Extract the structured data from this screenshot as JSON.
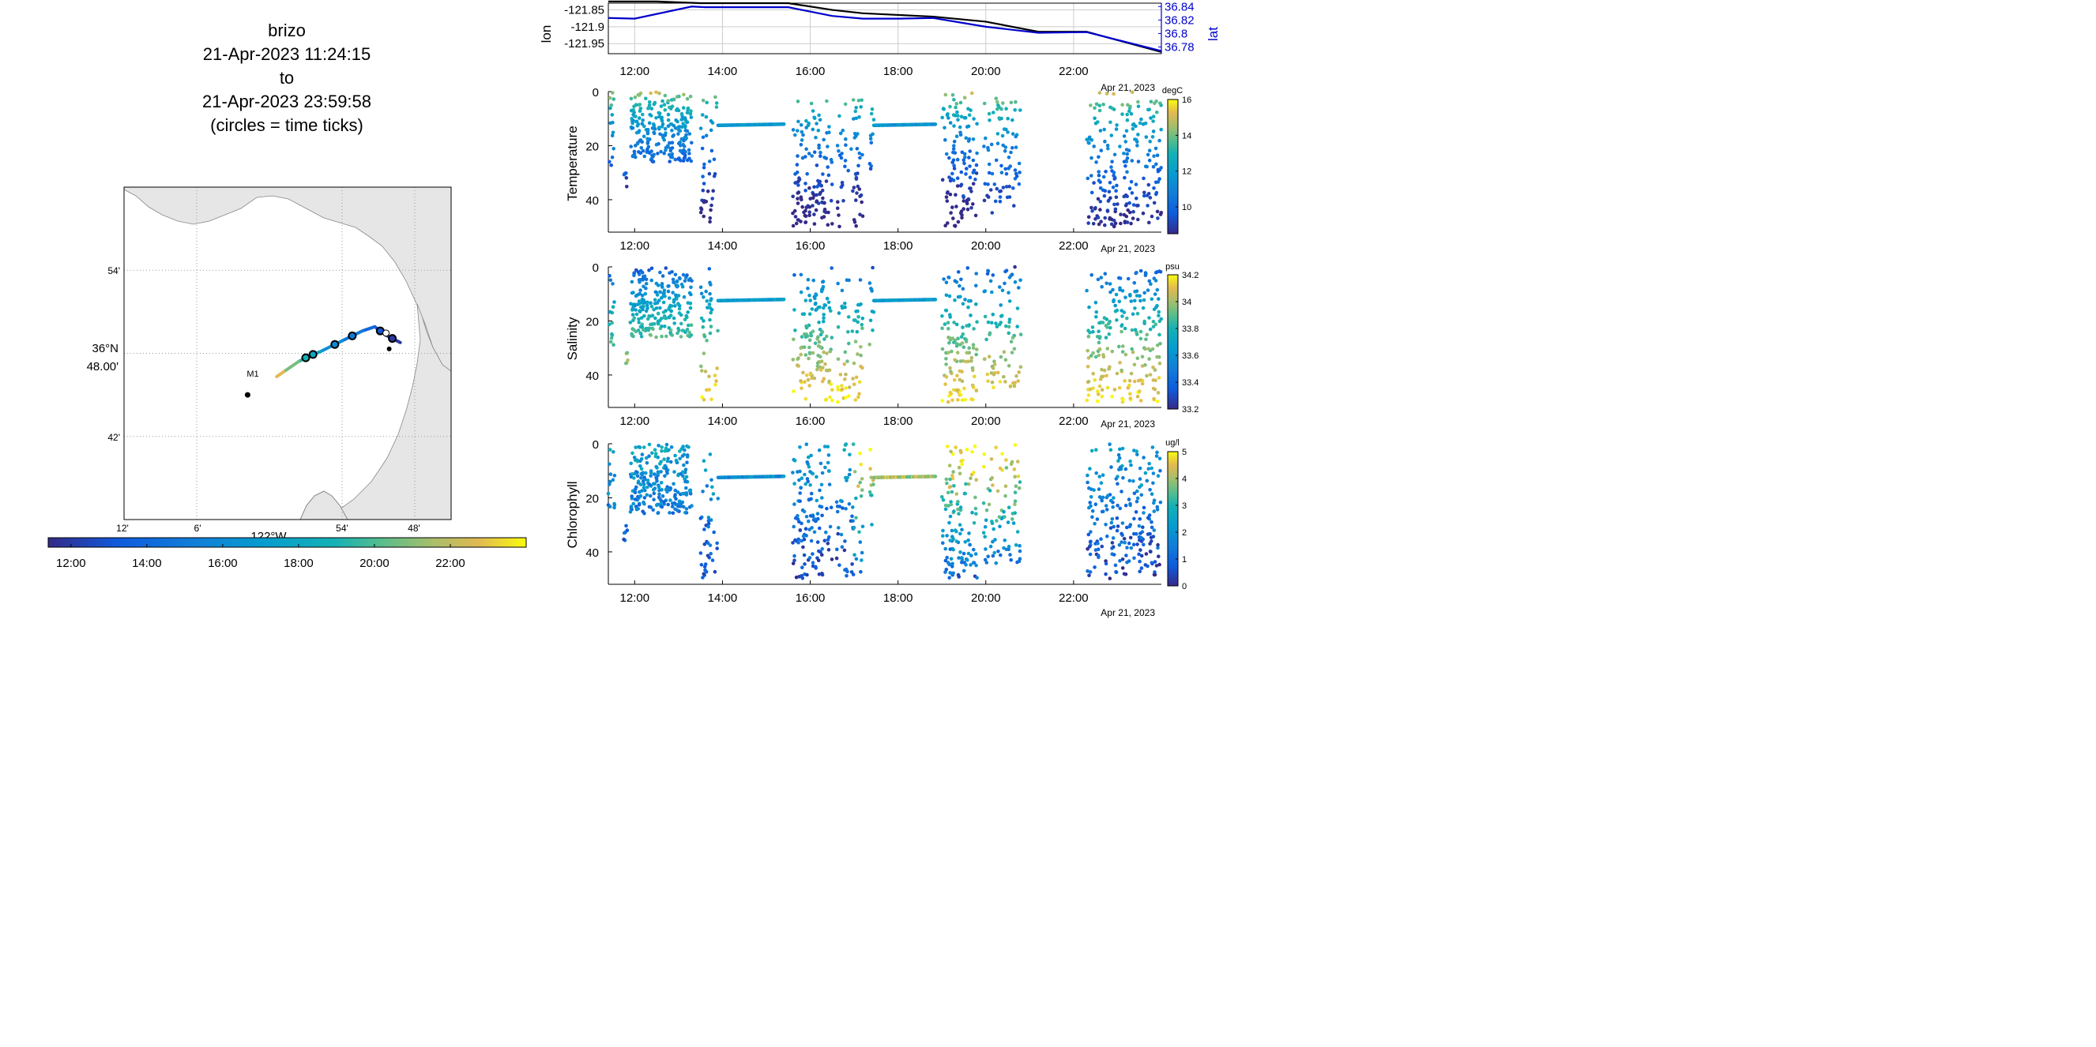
{
  "title": {
    "line1": "brizo",
    "line2": "21-Apr-2023 11:24:15",
    "line3": "to",
    "line4": "21-Apr-2023 23:59:58",
    "line5": "(circles = time ticks)"
  },
  "chart_data": [
    {
      "type": "map",
      "xlabel": "122°W",
      "lon_ticks": [
        "12'",
        "6'",
        "54'",
        "48'"
      ],
      "lon_tick_values": [
        -122.2,
        -122.1,
        -121.9,
        -121.8
      ],
      "lat_ticks": [
        "54'",
        "36°N 48.00'",
        "42'"
      ],
      "lat_tick_values": [
        36.9,
        36.8,
        36.7
      ],
      "xlim": [
        -122.2,
        -121.75
      ],
      "ylim": [
        36.6,
        37.0
      ],
      "station_label": "M1",
      "station": {
        "lon": -122.03,
        "lat": 36.75
      },
      "track": [
        {
          "time": 11.4,
          "lon": -121.82,
          "lat": 36.813
        },
        {
          "time": 12.5,
          "lon": -121.84,
          "lat": 36.822
        },
        {
          "time": 13.5,
          "lon": -121.855,
          "lat": 36.832
        },
        {
          "time": 14.5,
          "lon": -121.872,
          "lat": 36.827
        },
        {
          "time": 15.5,
          "lon": -121.9,
          "lat": 36.815
        },
        {
          "time": 17.0,
          "lon": -121.93,
          "lat": 36.802
        },
        {
          "time": 18.5,
          "lon": -121.945,
          "lat": 36.797
        },
        {
          "time": 20.0,
          "lon": -121.96,
          "lat": 36.79
        },
        {
          "time": 21.5,
          "lon": -121.98,
          "lat": 36.778
        },
        {
          "time": 24.0,
          "lon": -121.99,
          "lat": 36.772
        }
      ],
      "time_tick_circles": [
        12,
        13,
        15,
        16,
        18,
        19
      ],
      "colorbar_ticks": [
        "12:00",
        "14:00",
        "16:00",
        "18:00",
        "20:00",
        "22:00"
      ],
      "colorbar_range": [
        11.4,
        24.0
      ]
    },
    {
      "type": "line",
      "ylabel": "lon",
      "ylabel_right": "lat",
      "xlabel": "Apr 21, 2023",
      "x_ticks": [
        "12:00",
        "14:00",
        "16:00",
        "18:00",
        "20:00",
        "22:00"
      ],
      "y_ticks_left": [
        "-121.85",
        "-121.9",
        "-121.95"
      ],
      "y_ticks_right": [
        "36.84",
        "36.82",
        "36.8",
        "36.78"
      ],
      "ylim_left": [
        -121.98,
        -121.83
      ],
      "ylim_right": [
        36.77,
        36.845
      ],
      "series": [
        {
          "name": "lon",
          "x": [
            11.4,
            12.5,
            13.5,
            15.5,
            16.5,
            17.2,
            18.0,
            18.8,
            20.0,
            21.2,
            22.3,
            24.0
          ],
          "y": [
            -121.825,
            -121.825,
            -121.83,
            -121.83,
            -121.85,
            -121.86,
            -121.865,
            -121.87,
            -121.885,
            -121.915,
            -121.915,
            -121.975
          ]
        },
        {
          "name": "lat",
          "x": [
            11.4,
            12.0,
            13.3,
            13.6,
            15.5,
            16.5,
            17.2,
            18.0,
            18.8,
            20.0,
            21.2,
            22.3,
            24.0
          ],
          "y": [
            36.823,
            36.822,
            36.84,
            36.839,
            36.839,
            36.826,
            36.822,
            36.822,
            36.823,
            36.81,
            36.801,
            36.802,
            36.774
          ]
        }
      ],
      "series_colors": [
        "#000000",
        "#0000cc"
      ]
    },
    {
      "type": "scatter",
      "ylabel": "Temperature",
      "xlabel": "Apr 21, 2023",
      "x_ticks": [
        "12:00",
        "14:00",
        "16:00",
        "18:00",
        "20:00",
        "22:00"
      ],
      "y_ticks": [
        "0",
        "20",
        "40"
      ],
      "ylim": [
        0,
        52
      ],
      "colorbar_units": "degC",
      "colorbar_ticks": [
        "16",
        "14",
        "12",
        "10"
      ],
      "colorbar_range": [
        8.5,
        16
      ]
    },
    {
      "type": "scatter",
      "ylabel": "Salinity",
      "xlabel": "Apr 21, 2023",
      "x_ticks": [
        "12:00",
        "14:00",
        "16:00",
        "18:00",
        "20:00",
        "22:00"
      ],
      "y_ticks": [
        "0",
        "20",
        "40"
      ],
      "ylim": [
        0,
        52
      ],
      "colorbar_units": "psu",
      "colorbar_ticks": [
        "34.2",
        "34",
        "33.8",
        "33.6",
        "33.4",
        "33.2"
      ],
      "colorbar_range": [
        33.2,
        34.2
      ]
    },
    {
      "type": "scatter",
      "ylabel": "Chlorophyll",
      "xlabel": "Apr 21, 2023",
      "x_ticks": [
        "12:00",
        "14:00",
        "16:00",
        "18:00",
        "20:00",
        "22:00"
      ],
      "y_ticks": [
        "0",
        "20",
        "40"
      ],
      "ylim": [
        0,
        52
      ],
      "colorbar_units": "ug/l",
      "colorbar_ticks": [
        "5",
        "4",
        "3",
        "2",
        "1",
        "0"
      ],
      "colorbar_range": [
        0,
        5
      ]
    }
  ],
  "colors": {
    "land": "#e6e6e6",
    "coast": "#888888",
    "axis": "#000000",
    "grid": "#cccccc",
    "lat_axis": "#0000cc"
  }
}
